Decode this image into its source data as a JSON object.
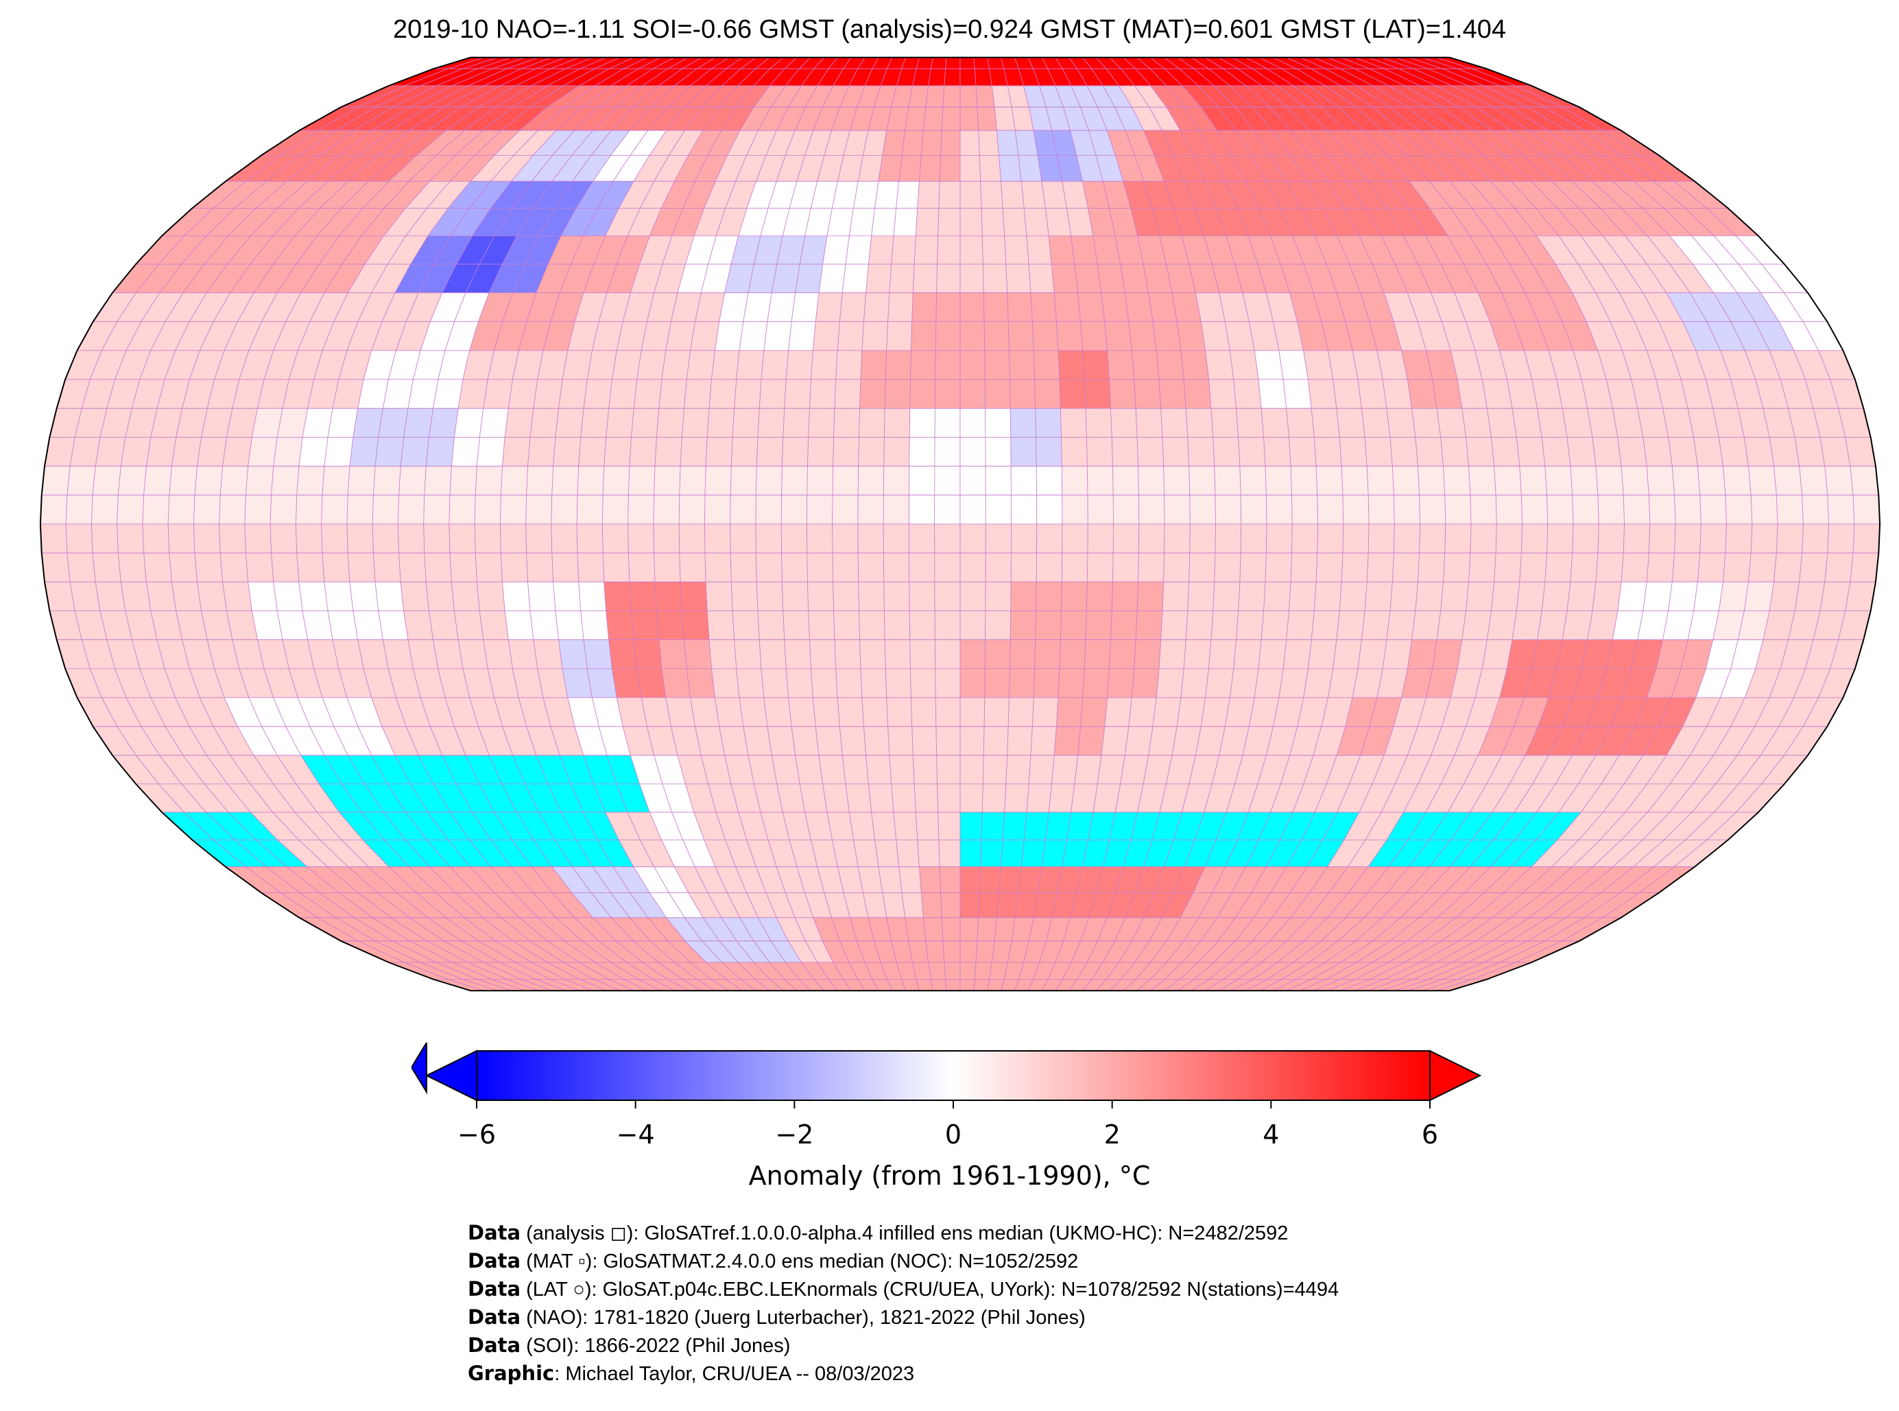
{
  "title": "2019-10 NAO=-1.11 SOI=-0.66 GMST (analysis)=0.924 GMST (MAT)=0.601 GMST (LAT)=1.404",
  "chart_data": {
    "type": "heatmap",
    "title": "2019-10 NAO=-1.11 SOI=-0.66 GMST (analysis)=0.924 GMST (MAT)=0.601 GMST (LAT)=1.404",
    "projection": "Robinson",
    "lat_bands_north_to_south": [
      85,
      75,
      65,
      55,
      45,
      35,
      25,
      15,
      5,
      -5,
      -15,
      -25,
      -35,
      -45,
      -55,
      -65,
      -75,
      -85
    ],
    "lon_start": -180,
    "lon_step": 10,
    "missing_color": "#00ffff",
    "values": [
      [
        6,
        6,
        6,
        6,
        6,
        6,
        6,
        6,
        6,
        6,
        6,
        6,
        6,
        6,
        6,
        6,
        6,
        6,
        6,
        6,
        6,
        6,
        6,
        6,
        6,
        6,
        6,
        6,
        6,
        6,
        6,
        6,
        6,
        6,
        6,
        6
      ],
      [
        4,
        4,
        4,
        4,
        4,
        4,
        3,
        3,
        3,
        3,
        3,
        3,
        2,
        2,
        2,
        2,
        2,
        2,
        2,
        1,
        -1,
        -1,
        -1,
        1,
        3,
        4,
        4,
        4,
        4,
        4,
        4,
        4,
        4,
        4,
        4,
        4
      ],
      [
        3,
        3,
        3,
        3,
        2,
        2,
        1,
        -1,
        -1,
        0,
        1,
        2,
        1,
        1,
        1,
        1,
        2,
        2,
        1,
        -1,
        -2,
        -1,
        2,
        3,
        3,
        3,
        3,
        3,
        3,
        3,
        3,
        3,
        3,
        3,
        3,
        3
      ],
      [
        2,
        2,
        2,
        2,
        2,
        1,
        -2,
        -3,
        -3,
        -2,
        1,
        2,
        1,
        0,
        0,
        0,
        0,
        1,
        1,
        1,
        1,
        2,
        3,
        3,
        3,
        3,
        3,
        3,
        3,
        2,
        2,
        2,
        2,
        2,
        2,
        2
      ],
      [
        2,
        2,
        2,
        2,
        2,
        1,
        -3,
        -4,
        -3,
        2,
        2,
        1,
        0,
        -1,
        -1,
        0,
        1,
        1,
        1,
        1,
        2,
        2,
        2,
        2,
        2,
        2,
        2,
        2,
        2,
        2,
        2,
        1,
        1,
        1,
        0,
        0
      ],
      [
        1,
        1,
        1,
        1,
        1,
        1,
        1,
        0,
        2,
        2,
        1,
        1,
        1,
        0,
        0,
        1,
        1,
        2,
        2,
        2,
        2,
        2,
        2,
        1,
        1,
        2,
        2,
        1,
        1,
        2,
        2,
        1,
        1,
        -1,
        -1,
        0
      ],
      [
        1,
        1,
        1,
        1,
        1,
        1,
        0,
        0,
        1,
        1,
        1,
        1,
        1,
        1,
        1,
        1,
        2,
        2,
        2,
        2,
        3,
        2,
        2,
        1,
        0,
        1,
        1,
        2,
        1,
        1,
        1,
        1,
        1,
        1,
        1,
        1
      ],
      [
        1,
        1,
        1,
        1,
        0.5,
        0,
        -1,
        -1,
        0,
        1,
        1,
        1,
        1,
        1,
        1,
        1,
        1,
        0,
        0,
        -1,
        1,
        1,
        1,
        1,
        1,
        1,
        1,
        1,
        1,
        1,
        1,
        1,
        1,
        1,
        1,
        1
      ],
      [
        0.5,
        0.5,
        0.5,
        0.5,
        0.5,
        0.5,
        0.5,
        0.5,
        0.5,
        0.5,
        0.5,
        0.5,
        0.5,
        0.5,
        0.5,
        0.5,
        0.5,
        0,
        0,
        0,
        0.5,
        0.5,
        0.5,
        0.5,
        0.5,
        0.5,
        0.5,
        0.5,
        0.5,
        0.5,
        0.5,
        0.5,
        0.5,
        0.5,
        0.5,
        0.5
      ],
      [
        1,
        1,
        1,
        1,
        1,
        1,
        1,
        1,
        1,
        1,
        1,
        1,
        1,
        1,
        1,
        1,
        1,
        1,
        1,
        1,
        1,
        1,
        1,
        1,
        1,
        1,
        1,
        1,
        1,
        1,
        1,
        1,
        1,
        1,
        1,
        1
      ],
      [
        1,
        1,
        1,
        1,
        0,
        0,
        0,
        1,
        1,
        0,
        0,
        3,
        3,
        1,
        1,
        1,
        1,
        1,
        1,
        2,
        2,
        2,
        1,
        1,
        1,
        1,
        1,
        1,
        1,
        1,
        1,
        0,
        0,
        0.5,
        1,
        1
      ],
      [
        1,
        1,
        1,
        1,
        1,
        1,
        1,
        1,
        1,
        1,
        -1,
        3,
        2,
        1,
        1,
        1,
        1,
        1,
        2,
        2,
        2,
        2,
        1,
        1,
        1,
        1,
        1,
        2,
        1,
        3,
        3,
        3,
        2,
        0,
        1,
        1
      ],
      [
        1,
        1,
        1,
        0,
        0,
        0,
        1,
        1,
        1,
        1,
        0,
        1,
        1,
        1,
        1,
        1,
        1,
        1,
        1,
        1,
        2,
        1,
        1,
        1,
        1,
        1,
        2,
        1,
        1,
        2,
        3,
        3,
        3,
        1,
        1,
        1
      ],
      [
        1,
        1,
        1,
        1,
        null,
        null,
        null,
        null,
        null,
        null,
        null,
        0,
        1,
        1,
        1,
        1,
        1,
        1,
        1,
        1,
        1,
        1,
        1,
        1,
        1,
        1,
        1,
        1,
        1,
        1,
        1,
        1,
        1,
        1,
        1,
        1
      ],
      [
        null,
        null,
        1,
        1,
        null,
        null,
        null,
        null,
        null,
        null,
        1,
        0,
        1,
        1,
        1,
        1,
        1,
        1,
        null,
        null,
        null,
        null,
        null,
        null,
        null,
        null,
        null,
        1,
        null,
        null,
        null,
        null,
        1,
        1,
        1,
        1
      ],
      [
        2,
        2,
        2,
        2,
        2,
        2,
        2,
        2,
        -1,
        -1,
        0,
        1,
        1,
        1,
        1,
        1,
        1,
        2,
        3,
        3,
        3,
        3,
        3,
        3,
        2,
        2,
        2,
        2,
        2,
        2,
        2,
        2,
        2,
        2,
        2,
        2
      ],
      [
        2,
        2,
        2,
        2,
        2,
        2,
        2,
        2,
        2,
        2,
        -1,
        -1,
        -1,
        1,
        2,
        2,
        2,
        2,
        2,
        2,
        2,
        2,
        2,
        2,
        2,
        2,
        2,
        2,
        2,
        2,
        2,
        2,
        2,
        2,
        2,
        2
      ],
      [
        2,
        2,
        2,
        2,
        2,
        2,
        2,
        2,
        2,
        2,
        2,
        2,
        2,
        2,
        2,
        2,
        2,
        2,
        2,
        2,
        2,
        2,
        2,
        2,
        2,
        2,
        2,
        2,
        2,
        2,
        2,
        2,
        2,
        2,
        2,
        2
      ]
    ],
    "colorbar": {
      "range": [
        -6,
        6
      ],
      "extend": "both",
      "low_color": "#0000ff",
      "mid_color": "#ffffff",
      "high_color": "#ff0000",
      "ticks": [
        "−6",
        "−4",
        "−2",
        "0",
        "2",
        "4",
        "6"
      ],
      "tick_values": [
        -6,
        -4,
        -2,
        0,
        2,
        4,
        6
      ],
      "label": "Anomaly (from 1961-1990), °C"
    }
  },
  "footer": [
    {
      "bold": "Data",
      "text": " (analysis ◻): GloSATref.1.0.0.0-alpha.4 infilled ens median (UKMO-HC): N=2482/2592"
    },
    {
      "bold": "Data",
      "text": " (MAT ▫): GloSATMAT.2.4.0.0 ens median (NOC): N=1052/2592"
    },
    {
      "bold": "Data",
      "text": " (LAT ○): GloSAT.p04c.EBC.LEKnormals (CRU/UEA, UYork): N=1078/2592 N(stations)=4494"
    },
    {
      "bold": "Data",
      "text": " (NAO): 1781-1820 (Juerg Luterbacher), 1821-2022 (Phil Jones)"
    },
    {
      "bold": "Data",
      "text": " (SOI): 1866-2022 (Phil Jones)"
    },
    {
      "bold": "Graphic",
      "text": ": Michael Taylor, CRU/UEA -- 08/03/2023"
    }
  ]
}
